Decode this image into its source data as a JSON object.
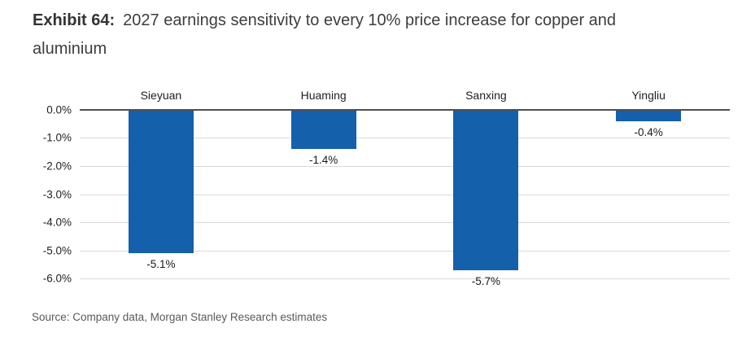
{
  "header": {
    "exhibit_label": "Exhibit 64:",
    "title_text": "2027 earnings sensitivity to every 10% price increase for copper and aluminium"
  },
  "footer": {
    "source": "Source: Company data, Morgan Stanley Research estimates"
  },
  "chart_data": {
    "type": "bar",
    "title": "2027 earnings sensitivity to every 10% price increase for copper and aluminium",
    "categories": [
      "Sieyuan",
      "Huaming",
      "Sanxing",
      "Yingliu"
    ],
    "values": [
      -5.1,
      -1.4,
      -5.7,
      -0.4
    ],
    "value_labels": [
      "-5.1%",
      "-1.4%",
      "-5.7%",
      "-0.4%"
    ],
    "ytick_labels": [
      "0.0%",
      "-1.0%",
      "-2.0%",
      "-3.0%",
      "-4.0%",
      "-5.0%",
      "-6.0%"
    ],
    "ylim": [
      -6,
      0
    ],
    "xlabel": "",
    "ylabel": "",
    "grid": true,
    "legend": "none",
    "category_label_position": "top",
    "bar_color": "#1460aa",
    "zero_line_color": "#4f4f4f",
    "gridline_color": "#d9d9d9"
  }
}
